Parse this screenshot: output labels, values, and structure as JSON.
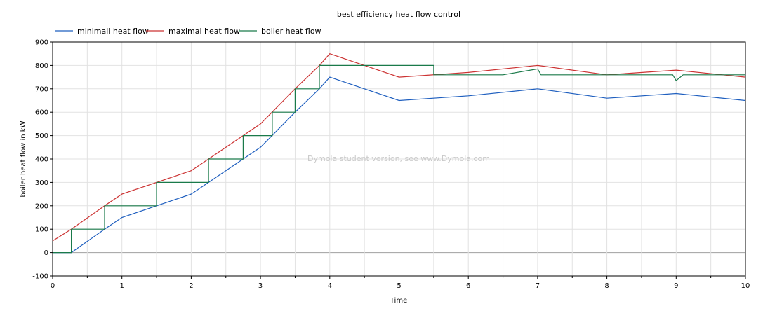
{
  "chart_data": {
    "type": "line",
    "title": "best efficiency heat flow control",
    "xlabel": "Time",
    "ylabel": "boiler heat flow in kW",
    "xlim": [
      0,
      10
    ],
    "ylim": [
      -100,
      900
    ],
    "xticks": [
      0,
      1,
      2,
      3,
      4,
      5,
      6,
      7,
      8,
      9,
      10
    ],
    "yticks": [
      -100,
      0,
      100,
      200,
      300,
      400,
      500,
      600,
      700,
      800,
      900
    ],
    "grid": true,
    "legend_position": "top-left",
    "watermark": "Dymola student version, see www.Dymola.com",
    "series": [
      {
        "name": "minimall heat flow",
        "color": "#1f5fbf",
        "x": [
          0,
          0.27,
          0.75,
          1.0,
          1.5,
          2.0,
          2.25,
          2.75,
          3.0,
          3.5,
          3.85,
          4.0,
          5.0,
          6.0,
          7.0,
          8.0,
          9.0,
          10.0
        ],
        "y": [
          0,
          0,
          100,
          150,
          200,
          250,
          300,
          400,
          450,
          600,
          700,
          750,
          650,
          670,
          700,
          660,
          680,
          650
        ]
      },
      {
        "name": "maximal heat flow",
        "color": "#cc3333",
        "x": [
          0,
          0.27,
          0.75,
          1.0,
          1.5,
          2.0,
          2.25,
          2.75,
          3.0,
          3.5,
          3.85,
          4.0,
          5.0,
          6.0,
          7.0,
          8.0,
          9.0,
          10.0
        ],
        "y": [
          50,
          100,
          200,
          250,
          300,
          350,
          400,
          500,
          550,
          700,
          800,
          850,
          750,
          770,
          800,
          760,
          780,
          750
        ]
      },
      {
        "name": "boiler heat flow",
        "color": "#1a7a4a",
        "x": [
          0,
          0.27,
          0.27,
          0.75,
          0.75,
          1.5,
          1.5,
          2.25,
          2.25,
          2.75,
          2.75,
          3.17,
          3.17,
          3.5,
          3.5,
          3.85,
          3.85,
          5.5,
          5.5,
          6.5,
          7.0,
          7.05,
          8.0,
          8.95,
          9.0,
          9.1,
          10.0
        ],
        "y": [
          0,
          0,
          100,
          100,
          200,
          200,
          300,
          300,
          400,
          400,
          500,
          500,
          600,
          600,
          700,
          700,
          800,
          800,
          760,
          760,
          785,
          760,
          760,
          760,
          735,
          760,
          760
        ]
      }
    ]
  }
}
